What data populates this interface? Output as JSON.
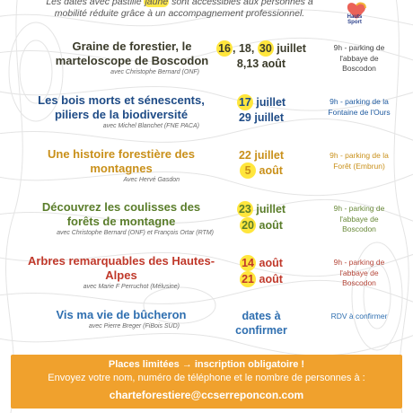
{
  "intro": {
    "line1_before": "Les dates avec pastille ",
    "line1_highlight": "jaune",
    "line1_after": " sont accessibles aux personnes à",
    "line2": "mobilité réduite grâce à un accompagnement professionnel."
  },
  "logo": {
    "text": "Hauts Sport",
    "colors": [
      "#2a3f8a",
      "#e8463b",
      "#f3b43a"
    ]
  },
  "events": [
    {
      "title": "Graine de forestier, le marteloscope de Boscodon",
      "subtitle": "avec Christophe Bernard (ONF)",
      "dates_line1": [
        {
          "t": "16",
          "dot": true
        },
        {
          "t": ", 18, ",
          "dot": false
        },
        {
          "t": "30",
          "dot": true
        },
        {
          "t": " juillet",
          "dot": false
        }
      ],
      "dates_line2": [
        {
          "t": "8,13 août",
          "dot": false
        }
      ],
      "location": "9h - parking de l'abbaye de Boscodon",
      "color": "#3b3b2a"
    },
    {
      "title": "Les bois morts et sénescents, piliers de la biodiversité",
      "subtitle": "avec Michel Blanchet (FNE PACA)",
      "dates_line1": [
        {
          "t": "17",
          "dot": true
        },
        {
          "t": " juillet",
          "dot": false
        }
      ],
      "dates_line2": [
        {
          "t": "29 juillet",
          "dot": false
        }
      ],
      "location": "9h - parking de la Fontaine de l'Ours",
      "color": "#1e4b86"
    },
    {
      "title": "Une histoire forestière des montagnes",
      "subtitle": "Avec Hervé Gasdon",
      "dates_line1": [
        {
          "t": "22 juillet",
          "dot": false
        }
      ],
      "dates_line2": [
        {
          "t": "5",
          "dot": true
        },
        {
          "t": " août",
          "dot": false
        }
      ],
      "location": "9h - parking de la Forêt (Embrun)",
      "color": "#c9901a"
    },
    {
      "title": "Découvrez les coulisses des forêts de montagne",
      "subtitle": "avec Christophe Bernard (ONF) et François Ortar (RTM)",
      "dates_line1": [
        {
          "t": "23",
          "dot": true
        },
        {
          "t": " juillet",
          "dot": false
        }
      ],
      "dates_line2": [
        {
          "t": "20",
          "dot": true
        },
        {
          "t": " août",
          "dot": false
        }
      ],
      "location": "9h - parking de l'abbaye de Boscodon",
      "color": "#5a7d2a"
    },
    {
      "title": "Arbres remarquables des Hautes-Alpes",
      "subtitle": "avec Marie F Perruchot (Mélusine)",
      "dates_line1": [
        {
          "t": "14",
          "dot": true
        },
        {
          "t": " août",
          "dot": false
        }
      ],
      "dates_line2": [
        {
          "t": "21",
          "dot": true
        },
        {
          "t": " août",
          "dot": false
        }
      ],
      "location": "9h - parking de l'abbaye de Boscodon",
      "color": "#c0392b"
    },
    {
      "title": "Vis ma vie de bûcheron",
      "subtitle": "avec Pierre Breger (FiBois SUD)",
      "dates_line1": [
        {
          "t": "dates à",
          "dot": false
        }
      ],
      "dates_line2": [
        {
          "t": "confirmer",
          "dot": false
        }
      ],
      "location": "RDV à confirmer",
      "color": "#2f6fb0"
    }
  ],
  "banner": {
    "line1": "Places limitées → inscription obligatoire !",
    "line2": "Envoyez votre nom, numéro de téléphone et le nombre de personnes à :",
    "email": "charteforestiere@ccserreponcon.com",
    "background": "#f0a12d"
  }
}
